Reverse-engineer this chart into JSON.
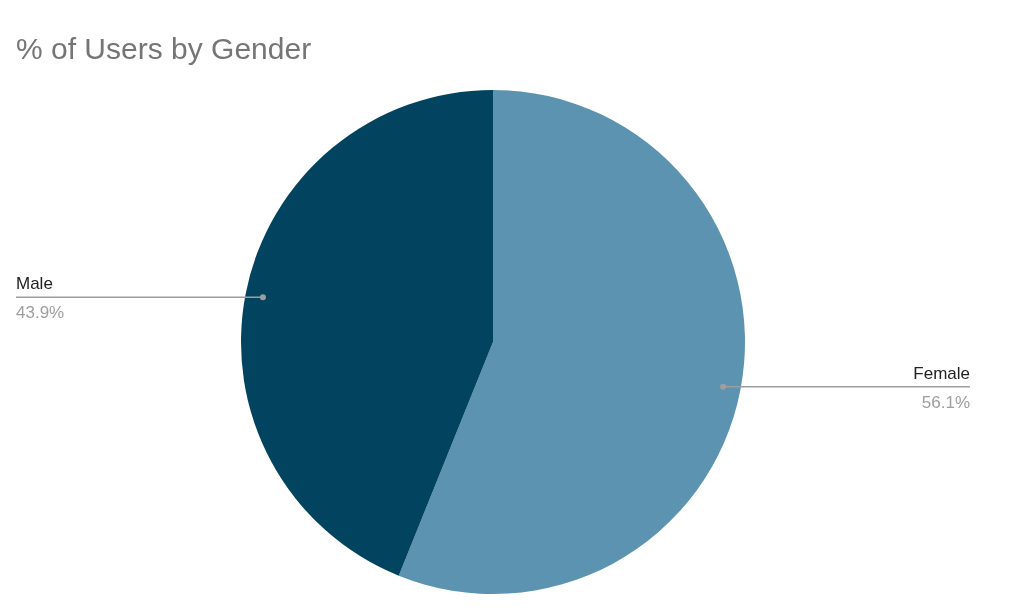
{
  "chart_data": {
    "type": "pie",
    "title": "% of Users by Gender",
    "categories": [
      "Female",
      "Male"
    ],
    "values": [
      56.1,
      43.9
    ],
    "colors": [
      "#5b93b0",
      "#02445f"
    ],
    "value_labels": [
      "56.1%",
      "43.9%"
    ]
  }
}
